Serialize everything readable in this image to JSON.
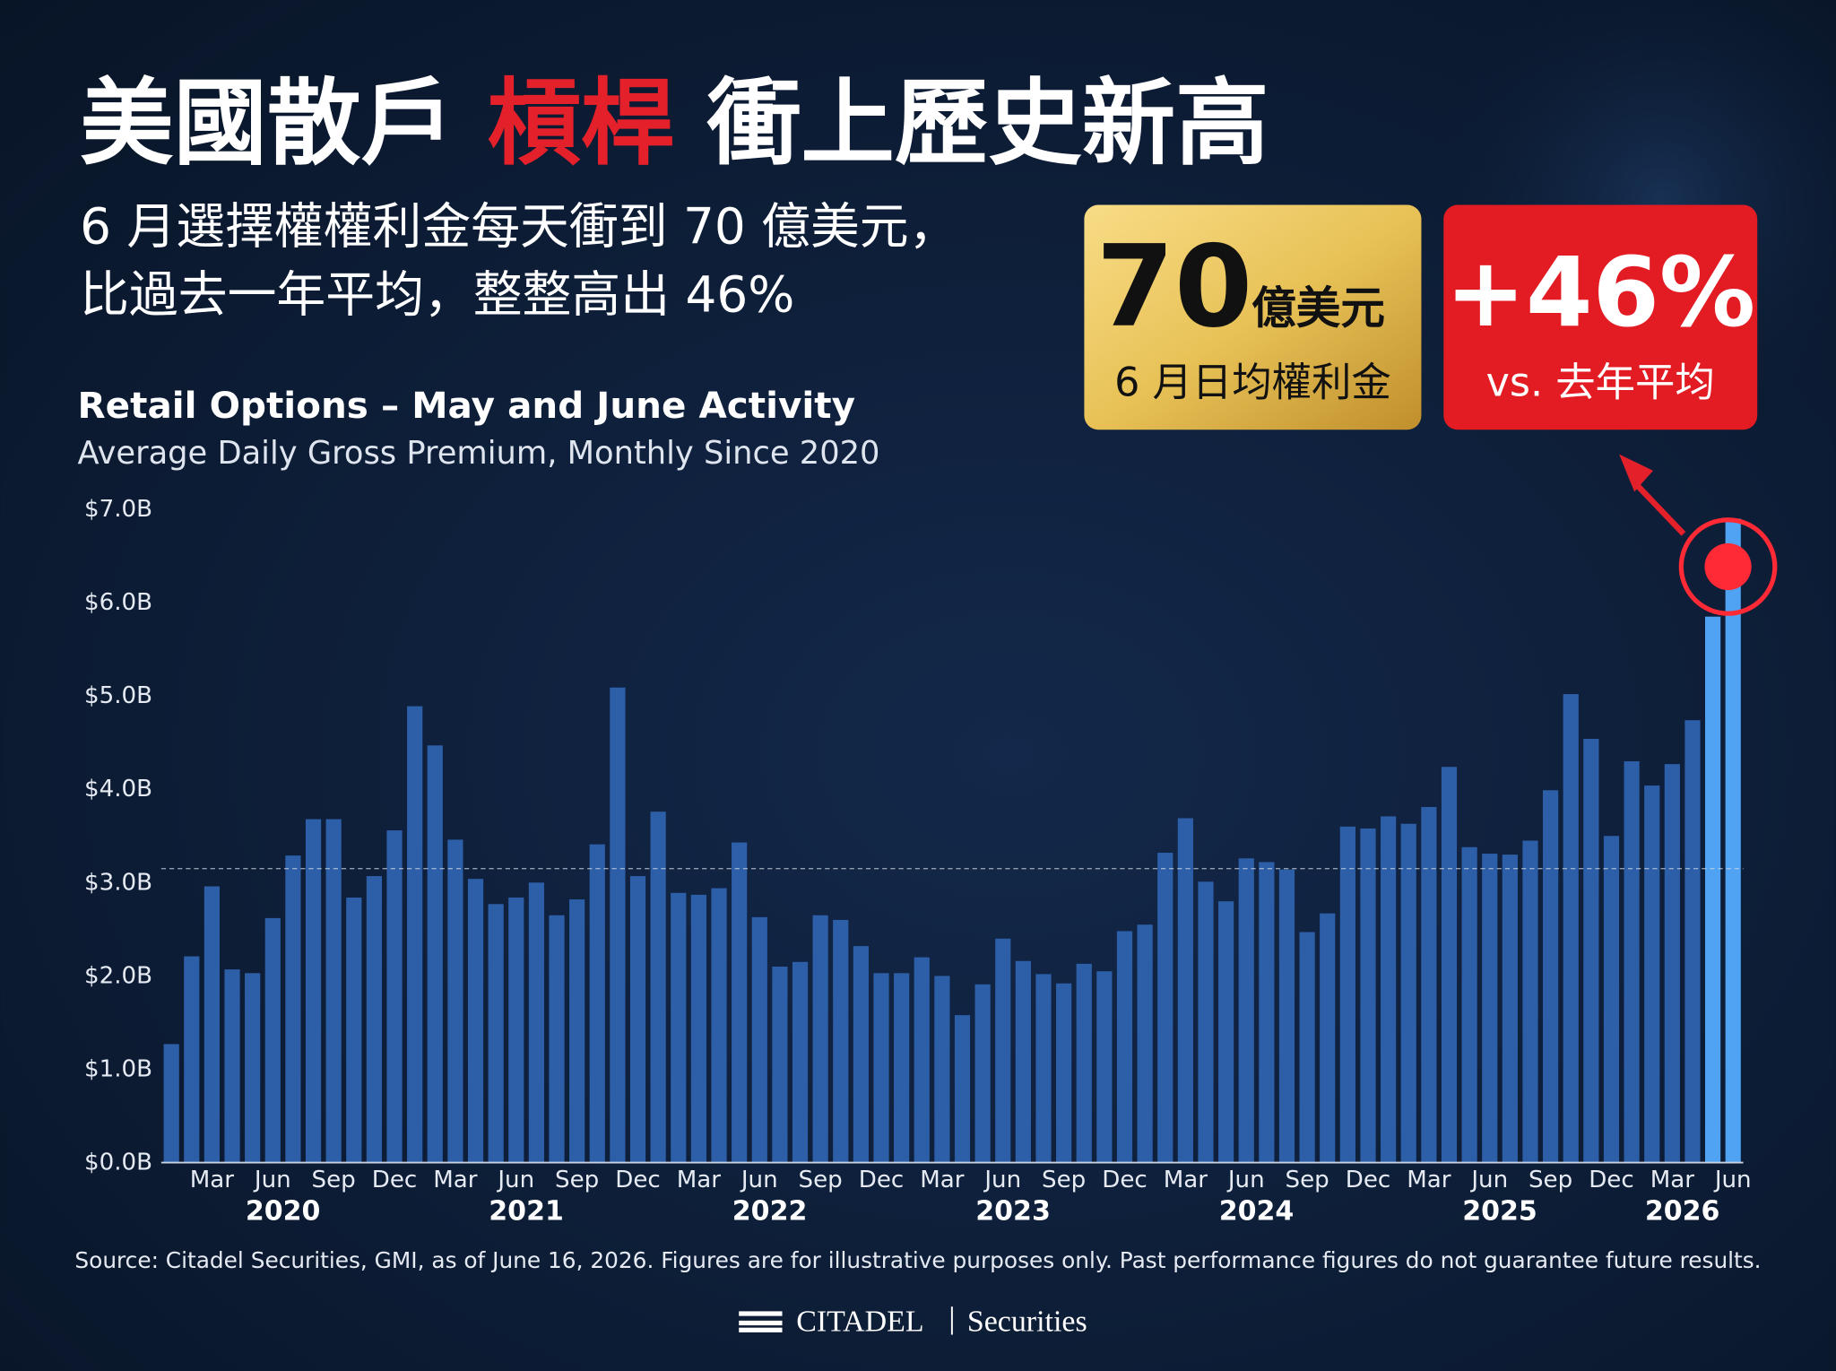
{
  "header": {
    "title_parts": [
      "美國散戶",
      "槓桿",
      "衝上歷史新高"
    ],
    "subtitle_lines": [
      "6 月選擇權權利金每天衝到 70 億美元，",
      "比過去一年平均，整整高出 46%"
    ]
  },
  "callouts": [
    {
      "big": "70",
      "unit": "億美元",
      "caption": "6 月日均權利金"
    },
    {
      "big": "+46%",
      "caption": "vs. 去年平均"
    }
  ],
  "chart_data": {
    "type": "bar",
    "title": "Retail Options – May and June Activity",
    "subtitle": "Average Daily Gross Premium, Monthly Since 2020",
    "categories": [
      null,
      null,
      "Mar",
      null,
      null,
      "Jun",
      null,
      null,
      "Sep",
      null,
      null,
      "Dec",
      null,
      null,
      "Mar",
      null,
      null,
      "Jun",
      null,
      null,
      "Sep",
      null,
      null,
      "Dec",
      null,
      null,
      "Mar",
      null,
      null,
      "Jun",
      null,
      null,
      "Sep",
      null,
      null,
      "Dec",
      null,
      null,
      "Mar",
      null,
      null,
      "Jun",
      null,
      null,
      "Sep",
      null,
      null,
      "Dec",
      null,
      null,
      "Mar",
      null,
      null,
      "Jun",
      null,
      null,
      "Sep",
      null,
      null,
      "Dec",
      null,
      null,
      "Mar",
      null,
      null,
      "Jun",
      null,
      null,
      "Sep",
      null,
      null,
      "Dec",
      null,
      null,
      "Mar",
      null,
      null,
      "Jun"
    ],
    "years": [
      "2020",
      "2021",
      "2022",
      "2023",
      "2024",
      "2025",
      "2026"
    ],
    "values": [
      1.27,
      2.21,
      2.96,
      2.07,
      2.03,
      2.62,
      3.29,
      3.68,
      3.68,
      2.84,
      3.07,
      3.56,
      4.89,
      4.47,
      3.46,
      3.04,
      2.77,
      2.84,
      3.0,
      2.65,
      2.82,
      3.41,
      5.09,
      3.07,
      3.76,
      2.89,
      2.87,
      2.94,
      3.43,
      2.63,
      2.1,
      2.15,
      2.65,
      2.6,
      2.32,
      2.03,
      2.03,
      2.2,
      2.0,
      1.58,
      1.91,
      2.4,
      2.16,
      2.02,
      1.92,
      2.13,
      2.05,
      2.48,
      2.55,
      3.32,
      3.69,
      3.01,
      2.8,
      3.26,
      3.22,
      3.14,
      2.47,
      2.67,
      3.6,
      3.58,
      3.71,
      3.63,
      3.81,
      4.24,
      3.38,
      3.31,
      3.3,
      3.45,
      3.99,
      5.02,
      4.54,
      3.5,
      4.3,
      4.04,
      4.27,
      4.74,
      5.85,
      6.9
    ],
    "color": "#2d5ea8",
    "highlight_color": "#4fa3f2",
    "highlight_last": 2,
    "reference_line": 3.15,
    "ylim": [
      0,
      7
    ],
    "yticks": [
      {
        "value": 0,
        "label": "$0.0B"
      },
      {
        "value": 1,
        "label": "$1.0B"
      },
      {
        "value": 2,
        "label": "$2.0B"
      },
      {
        "value": 3,
        "label": "$3.0B"
      },
      {
        "value": 4,
        "label": "$4.0B"
      },
      {
        "value": 5,
        "label": "$5.0B"
      },
      {
        "value": 6,
        "label": "$6.0B"
      },
      {
        "value": 7,
        "label": "$7.0B"
      }
    ],
    "grid": false
  },
  "footer": {
    "source": "Source: Citadel Securities, GMI, as of June 16, 2026. Figures are for illustrative purposes only. Past performance figures do not guarantee future results.",
    "brand": "CITADEL",
    "division": "Securities"
  }
}
